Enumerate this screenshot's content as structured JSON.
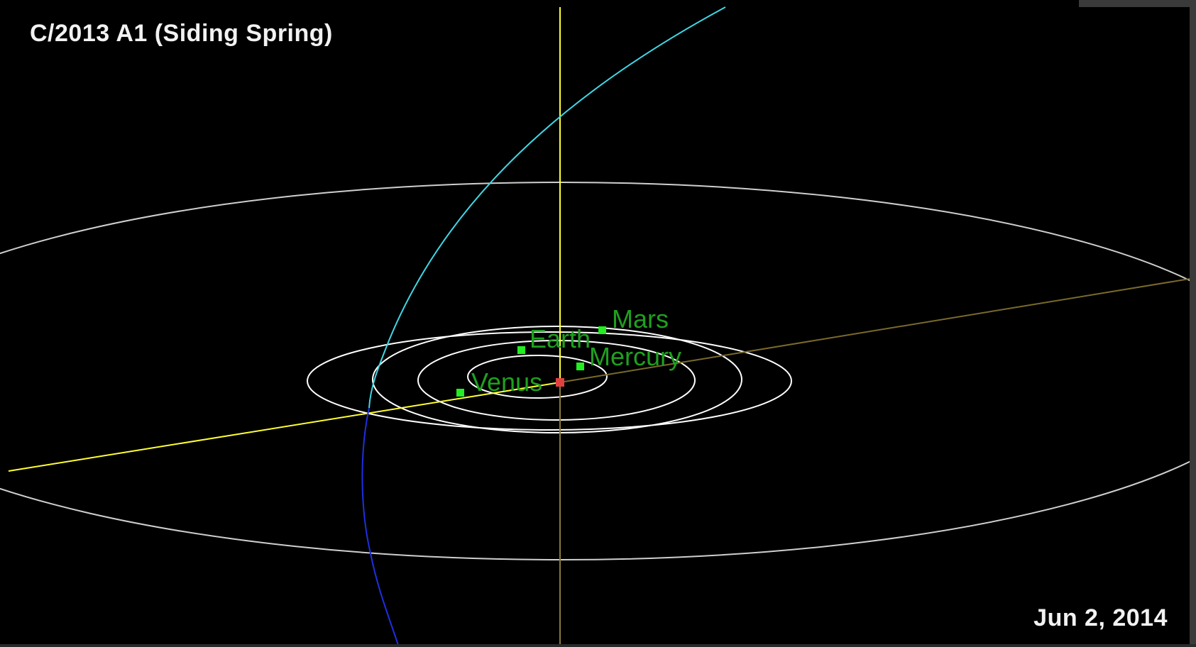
{
  "title": "C/2013 A1 (Siding Spring)",
  "date": "Jun 2, 2014",
  "colors": {
    "background": "#000000",
    "orbit": "#ffffff",
    "outer_orbit": "#cfcfcf",
    "comet_orbit_above": "#3fd7e6",
    "comet_orbit_below": "#1f2fe0",
    "ascending_node_line": "#ffff33",
    "descending_node_line": "#7a6a2a",
    "planet": "#22ee22",
    "planet_label": "#1fa01f",
    "sun": "#e04040",
    "axis_above": "#ffff33",
    "axis_below": "#8a7a3a"
  },
  "planets": {
    "mercury": {
      "label": "Mercury"
    },
    "venus": {
      "label": "Venus"
    },
    "earth": {
      "label": "Earth"
    },
    "mars": {
      "label": "Mars"
    }
  }
}
